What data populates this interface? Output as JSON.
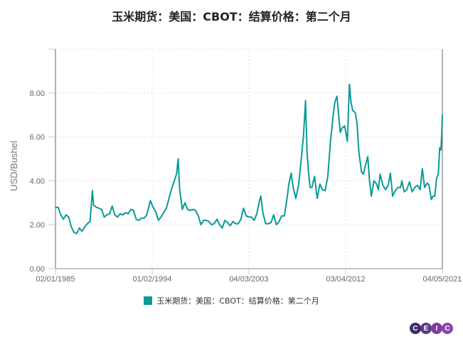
{
  "title": "玉米期货：美国：CBOT：结算价格：第二个月",
  "logo": {
    "letters": [
      "C",
      "E",
      "I",
      "C"
    ],
    "colors": [
      "#3d2a6b",
      "#5b3a8c",
      "#7b3fa0",
      "#8e44ad"
    ]
  },
  "chart_data": {
    "type": "line",
    "title": "玉米期货：美国：CBOT：结算价格：第二个月",
    "ylabel": "USD/Bushel",
    "xlabel": "",
    "ylim": [
      0,
      10
    ],
    "xlim": [
      "1985-01-02",
      "2021-05-04"
    ],
    "yticks": [
      "0.00",
      "2.00",
      "4.00",
      "6.00",
      "8.00"
    ],
    "xticks": [
      {
        "date": "1985-01-02",
        "label": "02/01/1985"
      },
      {
        "date": "1994-02-01",
        "label": "01/02/1994"
      },
      {
        "date": "2003-03-04",
        "label": "04/03/2003"
      },
      {
        "date": "2012-04-03",
        "label": "03/04/2012"
      },
      {
        "date": "2021-05-04",
        "label": "04/05/2021"
      }
    ],
    "grid": true,
    "legend_position": "bottom",
    "series": [
      {
        "name": "玉米期货：美国：CBOT：结算价格：第二个月",
        "color": "#0a9a96",
        "points": [
          [
            "1985-01-02",
            2.78
          ],
          [
            "1985-04-01",
            2.8
          ],
          [
            "1985-07-01",
            2.45
          ],
          [
            "1985-10-01",
            2.25
          ],
          [
            "1986-01-01",
            2.45
          ],
          [
            "1986-04-01",
            2.35
          ],
          [
            "1986-07-01",
            1.9
          ],
          [
            "1986-10-01",
            1.65
          ],
          [
            "1987-01-01",
            1.6
          ],
          [
            "1987-04-01",
            1.85
          ],
          [
            "1987-07-01",
            1.7
          ],
          [
            "1987-10-01",
            1.9
          ],
          [
            "1988-01-01",
            2.05
          ],
          [
            "1988-04-01",
            2.15
          ],
          [
            "1988-06-20",
            3.55
          ],
          [
            "1988-08-01",
            2.9
          ],
          [
            "1988-11-01",
            2.8
          ],
          [
            "1989-02-01",
            2.75
          ],
          [
            "1989-05-01",
            2.7
          ],
          [
            "1989-08-01",
            2.35
          ],
          [
            "1989-11-01",
            2.45
          ],
          [
            "1990-02-01",
            2.5
          ],
          [
            "1990-05-01",
            2.85
          ],
          [
            "1990-08-01",
            2.45
          ],
          [
            "1990-11-01",
            2.35
          ],
          [
            "1991-02-01",
            2.5
          ],
          [
            "1991-05-01",
            2.45
          ],
          [
            "1991-08-01",
            2.55
          ],
          [
            "1991-11-01",
            2.5
          ],
          [
            "1992-02-01",
            2.7
          ],
          [
            "1992-05-01",
            2.65
          ],
          [
            "1992-08-01",
            2.25
          ],
          [
            "1992-11-01",
            2.2
          ],
          [
            "1993-02-01",
            2.3
          ],
          [
            "1993-05-01",
            2.3
          ],
          [
            "1993-08-01",
            2.45
          ],
          [
            "1993-12-01",
            3.1
          ],
          [
            "1994-03-01",
            2.8
          ],
          [
            "1994-06-01",
            2.6
          ],
          [
            "1994-09-01",
            2.2
          ],
          [
            "1994-12-01",
            2.35
          ],
          [
            "1995-03-01",
            2.55
          ],
          [
            "1995-06-01",
            2.75
          ],
          [
            "1995-09-01",
            3.2
          ],
          [
            "1995-12-01",
            3.65
          ],
          [
            "1996-03-01",
            4.0
          ],
          [
            "1996-05-15",
            4.3
          ],
          [
            "1996-07-10",
            5.0
          ],
          [
            "1996-09-01",
            3.6
          ],
          [
            "1996-12-01",
            2.7
          ],
          [
            "1997-03-01",
            3.0
          ],
          [
            "1997-06-01",
            2.7
          ],
          [
            "1997-09-01",
            2.65
          ],
          [
            "1997-12-01",
            2.7
          ],
          [
            "1998-03-01",
            2.65
          ],
          [
            "1998-06-01",
            2.4
          ],
          [
            "1998-09-01",
            2.0
          ],
          [
            "1998-12-01",
            2.2
          ],
          [
            "1999-03-01",
            2.2
          ],
          [
            "1999-06-01",
            2.15
          ],
          [
            "1999-09-01",
            2.0
          ],
          [
            "1999-12-01",
            2.05
          ],
          [
            "2000-03-01",
            2.25
          ],
          [
            "2000-06-01",
            2.0
          ],
          [
            "2000-09-01",
            1.85
          ],
          [
            "2000-12-01",
            2.2
          ],
          [
            "2001-03-01",
            2.1
          ],
          [
            "2001-06-01",
            1.95
          ],
          [
            "2001-09-01",
            2.15
          ],
          [
            "2001-12-01",
            2.05
          ],
          [
            "2002-03-01",
            2.05
          ],
          [
            "2002-06-01",
            2.25
          ],
          [
            "2002-09-01",
            2.75
          ],
          [
            "2002-12-01",
            2.4
          ],
          [
            "2003-03-01",
            2.35
          ],
          [
            "2003-06-01",
            2.35
          ],
          [
            "2003-09-01",
            2.2
          ],
          [
            "2003-12-01",
            2.5
          ],
          [
            "2004-03-01",
            3.1
          ],
          [
            "2004-04-15",
            3.3
          ],
          [
            "2004-07-01",
            2.5
          ],
          [
            "2004-10-01",
            2.05
          ],
          [
            "2005-01-01",
            2.05
          ],
          [
            "2005-04-01",
            2.1
          ],
          [
            "2005-07-01",
            2.45
          ],
          [
            "2005-10-01",
            2.0
          ],
          [
            "2006-01-01",
            2.15
          ],
          [
            "2006-04-01",
            2.4
          ],
          [
            "2006-07-01",
            2.4
          ],
          [
            "2006-10-01",
            3.2
          ],
          [
            "2006-12-01",
            3.85
          ],
          [
            "2007-02-20",
            4.35
          ],
          [
            "2007-05-01",
            3.7
          ],
          [
            "2007-08-01",
            3.2
          ],
          [
            "2007-11-01",
            3.8
          ],
          [
            "2008-02-01",
            5.0
          ],
          [
            "2008-04-15",
            6.0
          ],
          [
            "2008-06-27",
            7.65
          ],
          [
            "2008-08-15",
            5.4
          ],
          [
            "2008-10-01",
            4.5
          ],
          [
            "2008-12-01",
            3.7
          ],
          [
            "2009-02-01",
            3.7
          ],
          [
            "2009-05-01",
            4.2
          ],
          [
            "2009-08-01",
            3.2
          ],
          [
            "2009-11-01",
            3.85
          ],
          [
            "2010-02-01",
            3.6
          ],
          [
            "2010-05-01",
            3.55
          ],
          [
            "2010-08-01",
            4.2
          ],
          [
            "2010-11-01",
            5.8
          ],
          [
            "2011-02-01",
            7.0
          ],
          [
            "2011-04-01",
            7.6
          ],
          [
            "2011-06-10",
            7.85
          ],
          [
            "2011-08-01",
            7.1
          ],
          [
            "2011-10-01",
            6.2
          ],
          [
            "2011-12-01",
            6.4
          ],
          [
            "2012-03-01",
            6.5
          ],
          [
            "2012-06-01",
            5.8
          ],
          [
            "2012-08-10",
            8.4
          ],
          [
            "2012-10-01",
            7.6
          ],
          [
            "2012-12-01",
            7.2
          ],
          [
            "2013-03-01",
            7.1
          ],
          [
            "2013-05-01",
            6.6
          ],
          [
            "2013-07-01",
            5.3
          ],
          [
            "2013-10-01",
            4.4
          ],
          [
            "2013-12-01",
            4.3
          ],
          [
            "2014-03-01",
            4.8
          ],
          [
            "2014-05-01",
            5.1
          ],
          [
            "2014-07-01",
            4.0
          ],
          [
            "2014-09-01",
            3.3
          ],
          [
            "2014-12-01",
            4.0
          ],
          [
            "2015-03-01",
            3.85
          ],
          [
            "2015-05-01",
            3.6
          ],
          [
            "2015-07-01",
            4.3
          ],
          [
            "2015-10-01",
            3.8
          ],
          [
            "2016-01-01",
            3.6
          ],
          [
            "2016-04-01",
            3.8
          ],
          [
            "2016-06-15",
            4.35
          ],
          [
            "2016-09-01",
            3.3
          ],
          [
            "2016-12-01",
            3.55
          ],
          [
            "2017-03-01",
            3.7
          ],
          [
            "2017-06-01",
            3.7
          ],
          [
            "2017-07-15",
            4.0
          ],
          [
            "2017-10-01",
            3.5
          ],
          [
            "2018-01-01",
            3.6
          ],
          [
            "2018-04-01",
            3.95
          ],
          [
            "2018-07-01",
            3.5
          ],
          [
            "2018-10-01",
            3.7
          ],
          [
            "2019-01-01",
            3.8
          ],
          [
            "2019-04-01",
            3.6
          ],
          [
            "2019-06-15",
            4.55
          ],
          [
            "2019-09-01",
            3.7
          ],
          [
            "2019-12-01",
            3.9
          ],
          [
            "2020-02-01",
            3.8
          ],
          [
            "2020-04-20",
            3.15
          ],
          [
            "2020-06-15",
            3.3
          ],
          [
            "2020-08-15",
            3.3
          ],
          [
            "2020-10-15",
            4.1
          ],
          [
            "2020-12-15",
            4.3
          ],
          [
            "2021-02-01",
            5.5
          ],
          [
            "2021-03-15",
            5.4
          ],
          [
            "2021-04-15",
            6.2
          ],
          [
            "2021-05-04",
            7.0
          ]
        ]
      }
    ]
  }
}
